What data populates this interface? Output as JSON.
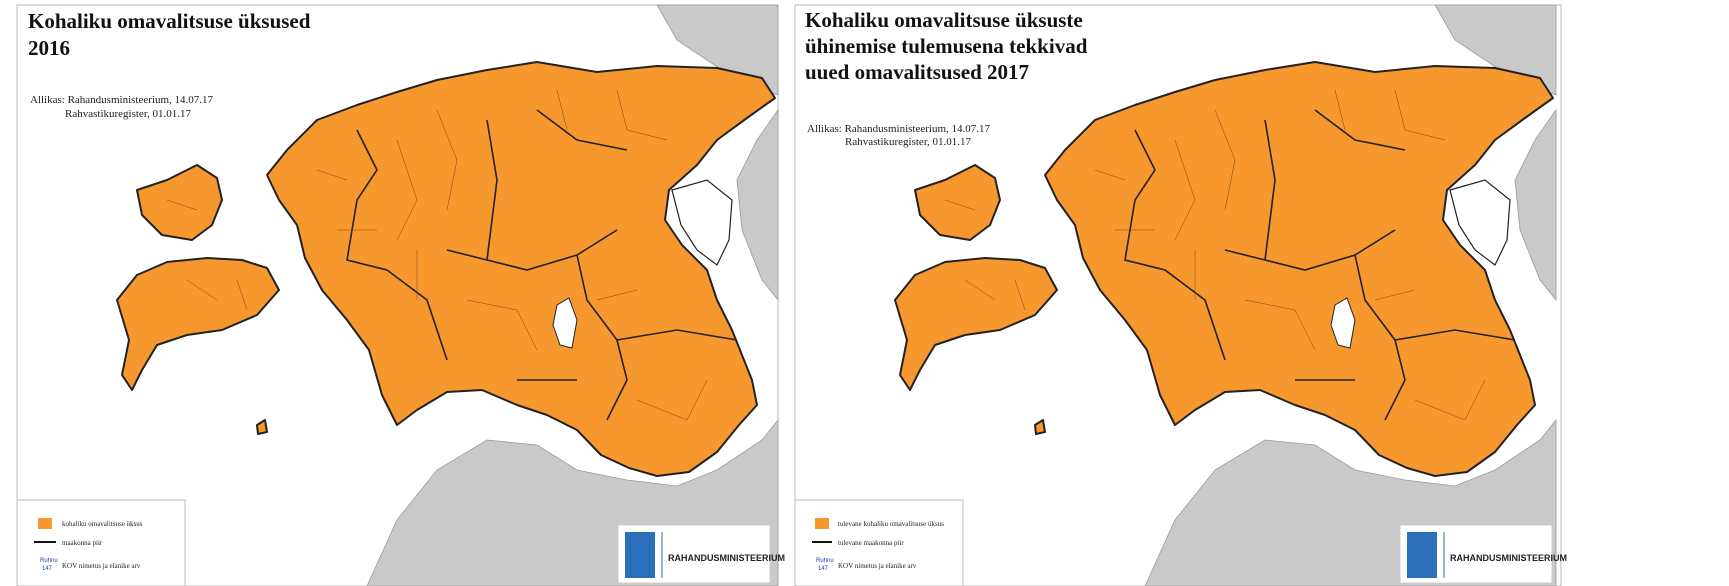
{
  "maps": [
    {
      "title": [
        "Kohaliku omavalitsuse üksused",
        "2016"
      ],
      "source": [
        "Allikas: Rahandusministeerium, 14.07.17",
        "Rahvastikuregister, 01.01.17"
      ],
      "legend": [
        "kohaliku omavalitsuse üksus",
        "maakonna piir",
        "KOV nimetus ja elanike arv"
      ],
      "legend_sample": [
        "Ruhnu",
        "147"
      ],
      "logo": "Rahandusministeerium"
    },
    {
      "title": [
        "Kohaliku omavalitsuse üksuste",
        "ühinemise tulemusena tekkivad",
        "uued omavalitsused 2017"
      ],
      "source": [
        "Allikas: Rahandusministeerium, 14.07.17",
        "Rahvastikuregister, 01.01.17"
      ],
      "legend": [
        "tulevane kohaliku omavalitsuse üksus",
        "tulevane maakonna piir",
        "KOV nimetus ja elanike arv"
      ],
      "legend_sample": [
        "Ruhnu",
        "147"
      ],
      "logo": "Rahandusministeerium"
    }
  ]
}
